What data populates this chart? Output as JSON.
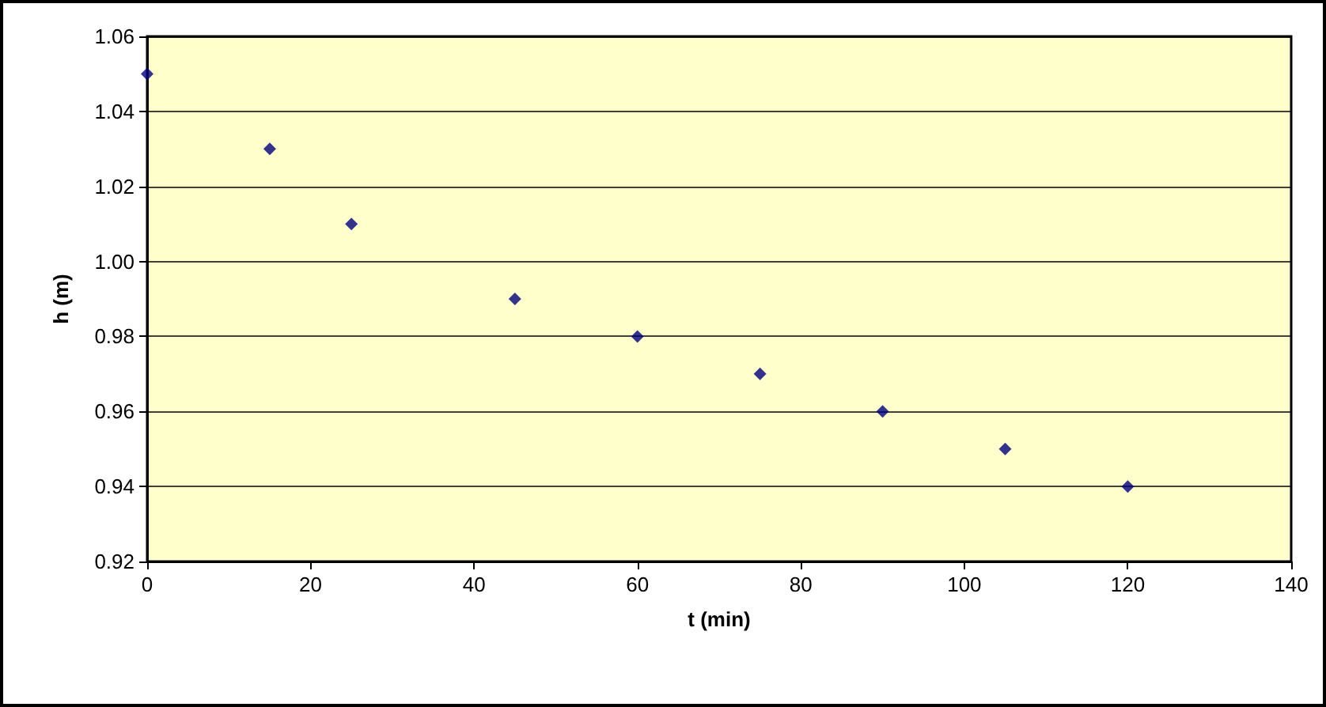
{
  "chart_data": {
    "type": "scatter",
    "xlabel": "t (min)",
    "ylabel": "h (m)",
    "x": [
      0,
      15,
      25,
      45,
      60,
      75,
      90,
      105,
      120
    ],
    "series": [
      {
        "color": "#000080",
        "values": [
          1.05,
          1.03,
          1.01,
          0.99,
          0.98,
          0.97,
          0.96,
          0.95,
          0.94
        ]
      }
    ],
    "xlim": [
      0,
      140
    ],
    "xticks": [
      0,
      20,
      40,
      60,
      80,
      100,
      120,
      140
    ],
    "ylim": [
      0.92,
      1.06
    ],
    "yticks": [
      0.92,
      0.94,
      0.96,
      0.98,
      {
        "value": 1,
        "label": "1.00"
      },
      1.02,
      1.04,
      1.06
    ],
    "grid": "y",
    "marker": "diamond"
  }
}
